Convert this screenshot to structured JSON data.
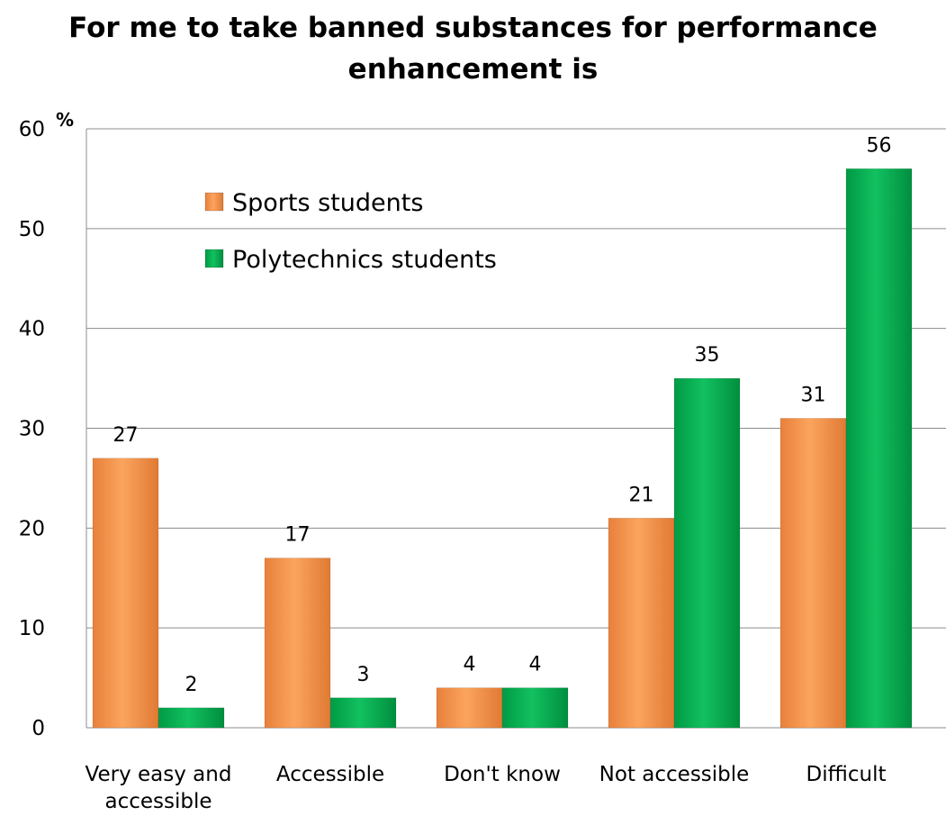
{
  "chart_data": {
    "type": "bar",
    "title_lines": [
      "For me to take banned substances for performance",
      "enhancement is"
    ],
    "ylabel": "%",
    "ylim": [
      0,
      60
    ],
    "yticks": [
      0,
      10,
      20,
      30,
      40,
      50,
      60
    ],
    "grid": true,
    "legend_position": "top-left inside plot",
    "categories": [
      [
        "Very easy and",
        "accessible"
      ],
      [
        "Accessible"
      ],
      [
        "Don't know"
      ],
      [
        "Not accessible"
      ],
      [
        "Difficult"
      ]
    ],
    "series": [
      {
        "name": "Sports students",
        "color": "#F79646",
        "values": [
          27,
          17,
          4,
          21,
          31
        ]
      },
      {
        "name": "Polytechnics students",
        "color": "#00B050",
        "values": [
          2,
          3,
          4,
          35,
          56
        ]
      }
    ]
  }
}
